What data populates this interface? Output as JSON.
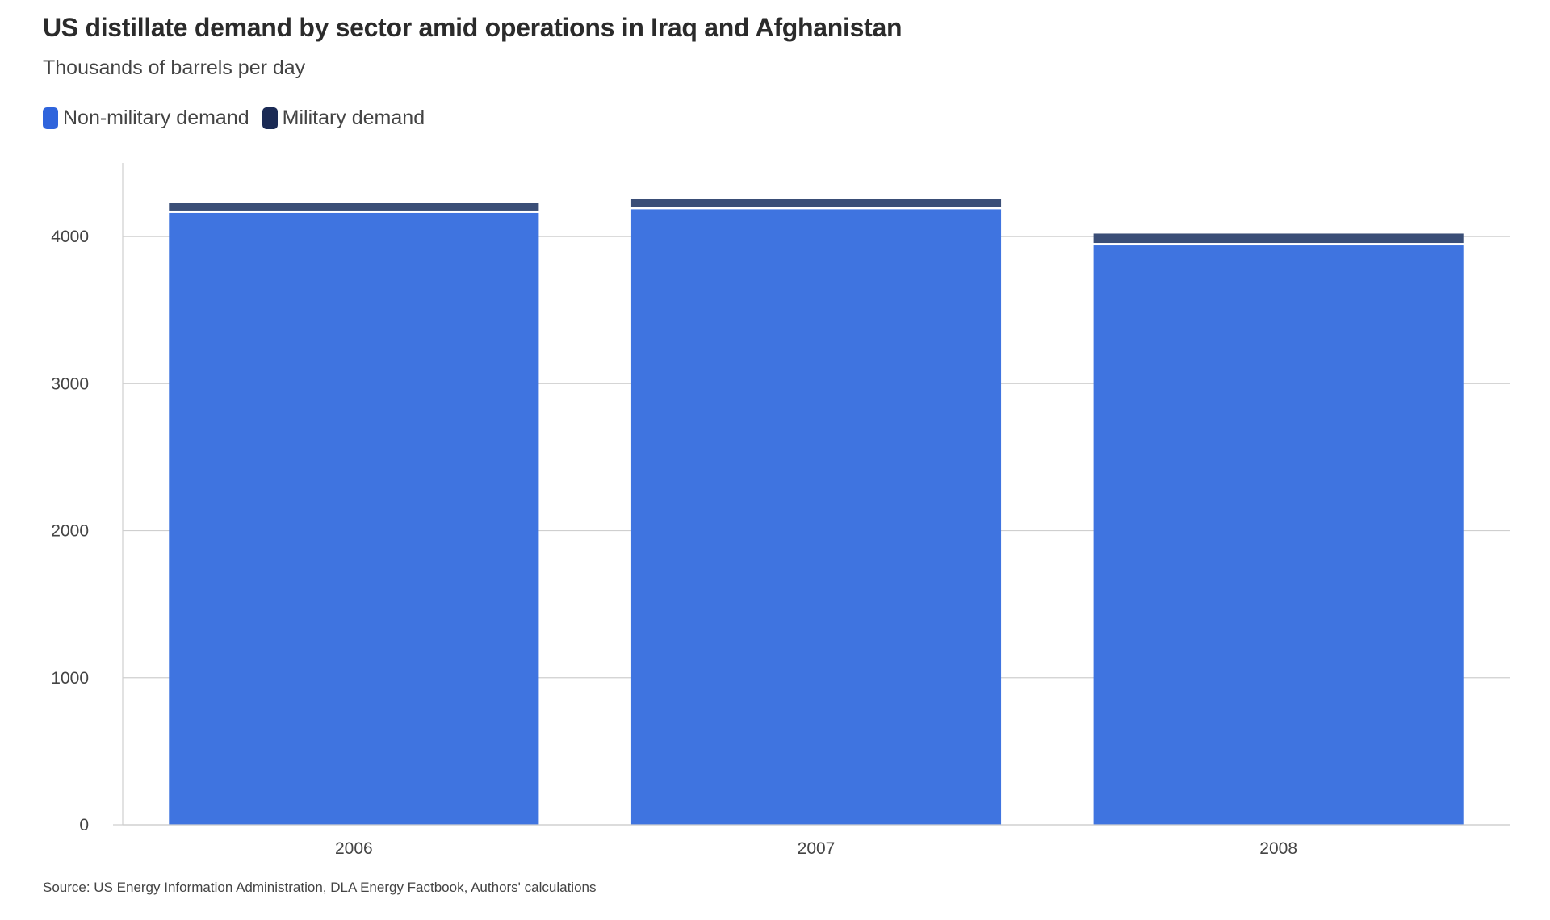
{
  "title": "US distillate demand by sector amid operations in Iraq and Afghanistan",
  "subtitle": "Thousands of barrels per day",
  "source": "Source: US Energy Information Administration, DLA Energy Factbook, Authors' calculations",
  "colors": {
    "non_military": "#3F74E0",
    "military": "#3A4E77",
    "legend_non_military": "#2F64DC",
    "legend_military": "#1B2B55"
  },
  "chart_data": {
    "type": "bar",
    "stacked": true,
    "categories": [
      "2006",
      "2007",
      "2008"
    ],
    "series": [
      {
        "name": "Non-military demand",
        "values": [
          4160,
          4185,
          3940
        ]
      },
      {
        "name": "Military demand",
        "values": [
          70,
          70,
          80
        ]
      }
    ],
    "ylim": [
      0,
      4500
    ],
    "yticks": [
      0,
      1000,
      2000,
      3000,
      4000
    ],
    "grid": true,
    "legend_position": "top-left"
  }
}
